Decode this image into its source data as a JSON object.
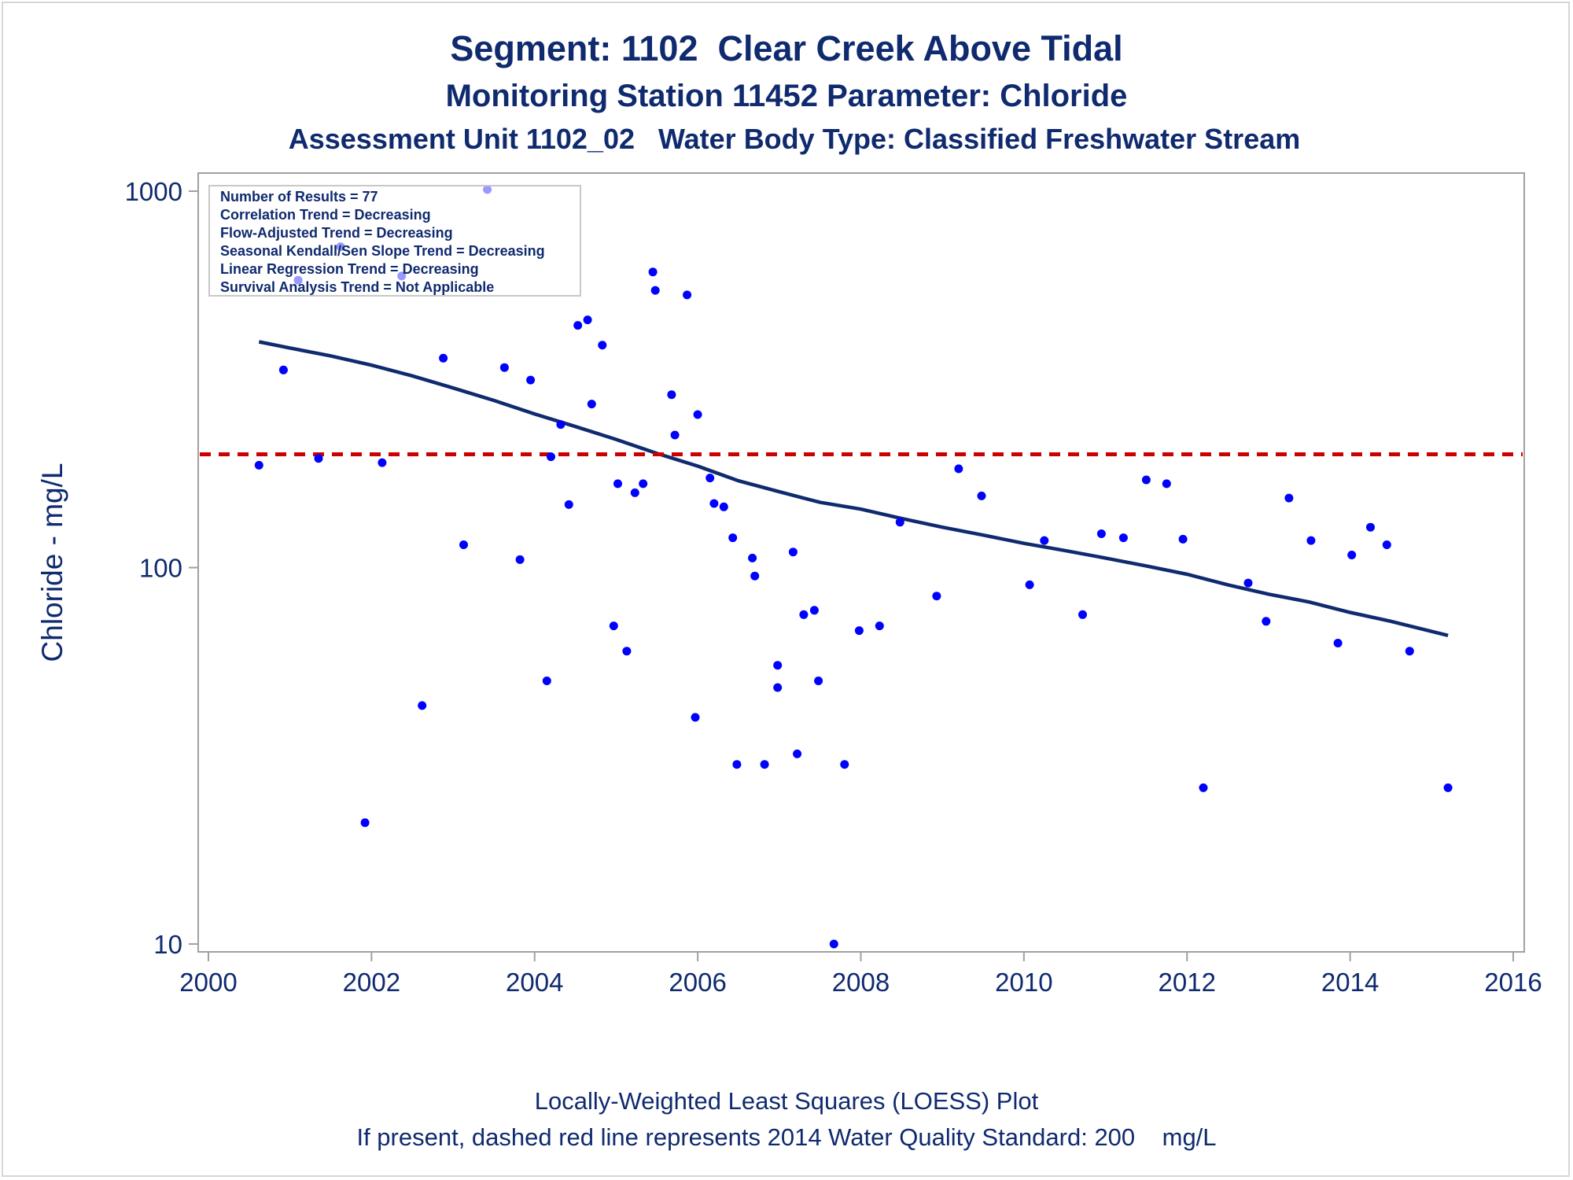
{
  "titles": {
    "title": "Segment: 1102  Clear Creek Above Tidal",
    "subtitle": "Monitoring Station 11452 Parameter: Chloride",
    "subtitle2": "Assessment Unit 1102_02   Water Body Type: Classified Freshwater Stream"
  },
  "footnotes": {
    "line1": "Locally-Weighted Least Squares (LOESS) Plot",
    "line2": "If present, dashed red line represents 2014 Water Quality Standard: 200    mg/L"
  },
  "stats_box": [
    "Number of Results = 77",
    "Correlation Trend = Decreasing",
    "Flow-Adjusted Trend = Decreasing",
    "Seasonal Kendall/Sen Slope Trend = Decreasing",
    "Linear Regression Trend = Decreasing",
    "Survival Analysis Trend = Not Applicable"
  ],
  "colors": {
    "text": "#0f2a6e",
    "points": "#0000ff",
    "loess": "#0f2a6e",
    "standard": "#cc0000",
    "axis": "#a0a0a0"
  },
  "chart_data": {
    "type": "scatter",
    "ylabel": "Chloride - mg/L",
    "xlabel": "",
    "xlim": [
      2000,
      2016
    ],
    "ylim": [
      10,
      1000
    ],
    "y_scale": "log",
    "x_ticks": [
      "2000",
      "2002",
      "2004",
      "2006",
      "2008",
      "2010",
      "2012",
      "2014",
      "2016"
    ],
    "y_ticks": [
      "10",
      "100",
      "1000"
    ],
    "standard_line": {
      "value": 200,
      "style": "dashed"
    },
    "points": [
      [
        2000.62,
        187
      ],
      [
        2000.92,
        335
      ],
      [
        2001.1,
        580
      ],
      [
        2001.35,
        195
      ],
      [
        2001.62,
        712
      ],
      [
        2001.92,
        21
      ],
      [
        2002.13,
        190
      ],
      [
        2002.37,
        595
      ],
      [
        2002.62,
        43
      ],
      [
        2002.88,
        360
      ],
      [
        2003.13,
        115
      ],
      [
        2003.42,
        1010
      ],
      [
        2003.63,
        340
      ],
      [
        2003.82,
        105
      ],
      [
        2003.95,
        315
      ],
      [
        2004.15,
        50
      ],
      [
        2004.2,
        197
      ],
      [
        2004.32,
        240
      ],
      [
        2004.42,
        147
      ],
      [
        2004.53,
        440
      ],
      [
        2004.65,
        455
      ],
      [
        2004.7,
        272
      ],
      [
        2004.83,
        390
      ],
      [
        2004.97,
        70
      ],
      [
        2005.02,
        167
      ],
      [
        2005.13,
        60
      ],
      [
        2005.23,
        158
      ],
      [
        2005.33,
        167
      ],
      [
        2005.45,
        610
      ],
      [
        2005.48,
        545
      ],
      [
        2005.68,
        288
      ],
      [
        2005.72,
        225
      ],
      [
        2005.87,
        530
      ],
      [
        2005.97,
        40
      ],
      [
        2006.0,
        255
      ],
      [
        2006.15,
        173
      ],
      [
        2006.2,
        148
      ],
      [
        2006.32,
        145
      ],
      [
        2006.43,
        120
      ],
      [
        2006.48,
        30
      ],
      [
        2006.67,
        106
      ],
      [
        2006.7,
        95
      ],
      [
        2006.82,
        30
      ],
      [
        2006.98,
        55
      ],
      [
        2006.98,
        48
      ],
      [
        2007.17,
        110
      ],
      [
        2007.22,
        32
      ],
      [
        2007.3,
        75
      ],
      [
        2007.43,
        77
      ],
      [
        2007.48,
        50
      ],
      [
        2007.67,
        10
      ],
      [
        2007.8,
        30
      ],
      [
        2007.98,
        68
      ],
      [
        2008.23,
        70
      ],
      [
        2008.48,
        132
      ],
      [
        2008.93,
        84
      ],
      [
        2009.2,
        183
      ],
      [
        2009.48,
        155
      ],
      [
        2010.07,
        90
      ],
      [
        2010.25,
        118
      ],
      [
        2010.72,
        75
      ],
      [
        2010.95,
        123
      ],
      [
        2011.22,
        120
      ],
      [
        2011.5,
        171
      ],
      [
        2011.75,
        167
      ],
      [
        2011.95,
        119
      ],
      [
        2012.2,
        26
      ],
      [
        2012.75,
        91
      ],
      [
        2012.97,
        72
      ],
      [
        2013.25,
        153
      ],
      [
        2013.52,
        118
      ],
      [
        2013.85,
        63
      ],
      [
        2014.02,
        108
      ],
      [
        2014.25,
        128
      ],
      [
        2014.45,
        115
      ],
      [
        2014.73,
        60
      ],
      [
        2015.2,
        26
      ]
    ],
    "loess": [
      [
        2000.62,
        398
      ],
      [
        2001.0,
        383
      ],
      [
        2001.5,
        365
      ],
      [
        2002.0,
        345
      ],
      [
        2002.5,
        323
      ],
      [
        2003.0,
        300
      ],
      [
        2003.5,
        278
      ],
      [
        2004.0,
        256
      ],
      [
        2004.5,
        237
      ],
      [
        2005.0,
        219
      ],
      [
        2005.5,
        201
      ],
      [
        2006.0,
        186
      ],
      [
        2006.5,
        170
      ],
      [
        2007.0,
        159
      ],
      [
        2007.5,
        149
      ],
      [
        2008.0,
        143
      ],
      [
        2008.5,
        135
      ],
      [
        2009.0,
        128
      ],
      [
        2009.5,
        122
      ],
      [
        2010.0,
        116
      ],
      [
        2010.5,
        111
      ],
      [
        2011.0,
        106
      ],
      [
        2011.5,
        101
      ],
      [
        2012.0,
        96
      ],
      [
        2012.5,
        90
      ],
      [
        2013.0,
        85
      ],
      [
        2013.5,
        81
      ],
      [
        2014.0,
        76
      ],
      [
        2014.5,
        72
      ],
      [
        2015.2,
        66
      ]
    ]
  }
}
